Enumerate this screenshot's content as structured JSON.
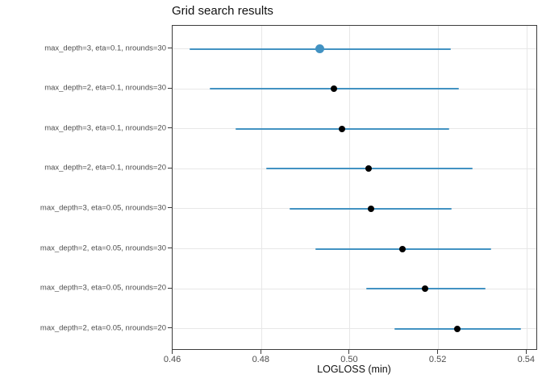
{
  "title": "Grid search results",
  "x_axis": {
    "label": "LOGLOSS (min)",
    "tick_labels": [
      "0.46",
      "0.48",
      "0.50",
      "0.52",
      "0.54"
    ]
  },
  "colors": {
    "interval_blue": "#4292c2",
    "highlight_point": "#4292c2",
    "point_black": "#000000",
    "grid_line": "#e7e7e7",
    "panel_border": "#3c3c3c",
    "tick_label": "#4d4d4d",
    "title_text": "#111111"
  },
  "chart_data": {
    "type": "scatter",
    "subtype": "dot-plot-with-horizontal-error-bars",
    "title": "Grid search results",
    "xlabel": "LOGLOSS (min)",
    "ylabel": "",
    "xlim": [
      0.4598,
      0.5424
    ],
    "x_ticks": [
      0.46,
      0.48,
      0.5,
      0.52,
      0.54
    ],
    "grid": "major vertical at x ticks, horizontal at each category",
    "legend": "none",
    "rows": [
      {
        "label": "max_depth=3, eta=0.1, nrounds=30",
        "value": 0.4932,
        "lo": 0.4637,
        "hi": 0.5228,
        "highlight": true
      },
      {
        "label": "max_depth=2, eta=0.1, nrounds=30",
        "value": 0.4963,
        "lo": 0.4683,
        "hi": 0.5247,
        "highlight": false
      },
      {
        "label": "max_depth=3, eta=0.1, nrounds=20",
        "value": 0.4981,
        "lo": 0.4742,
        "hi": 0.5225,
        "highlight": false
      },
      {
        "label": "max_depth=2, eta=0.1, nrounds=20",
        "value": 0.5042,
        "lo": 0.481,
        "hi": 0.5277,
        "highlight": false
      },
      {
        "label": "max_depth=3, eta=0.05, nrounds=30",
        "value": 0.5047,
        "lo": 0.4864,
        "hi": 0.523,
        "highlight": false
      },
      {
        "label": "max_depth=2, eta=0.05, nrounds=30",
        "value": 0.5119,
        "lo": 0.4921,
        "hi": 0.532,
        "highlight": false
      },
      {
        "label": "max_depth=3, eta=0.05, nrounds=20",
        "value": 0.517,
        "lo": 0.5036,
        "hi": 0.5307,
        "highlight": false
      },
      {
        "label": "max_depth=2, eta=0.05, nrounds=20",
        "value": 0.5242,
        "lo": 0.51,
        "hi": 0.5387,
        "highlight": false
      }
    ]
  }
}
